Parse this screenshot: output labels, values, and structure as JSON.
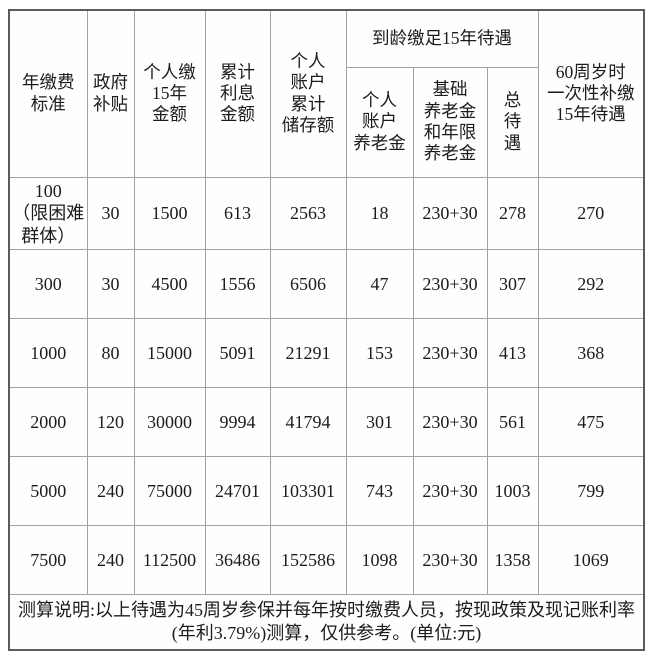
{
  "table": {
    "group_header": "到龄缴足15年待遇",
    "columns": [
      {
        "label": "年缴费\n标准"
      },
      {
        "label": "政府\n补贴"
      },
      {
        "label": "个人缴\n15年\n金额"
      },
      {
        "label": "累计\n利息\n金额"
      },
      {
        "label": "个人\n账户\n累计\n储存额"
      },
      {
        "label": "个人\n账户\n养老金"
      },
      {
        "label": "基础\n养老金\n和年限\n养老金"
      },
      {
        "label": "总\n待\n遇"
      },
      {
        "label": "60周岁时\n一次性补缴\n15年待遇"
      }
    ],
    "rows": [
      [
        "100\n（限困难\n群体）",
        "30",
        "1500",
        "613",
        "2563",
        "18",
        "230+30",
        "278",
        "270"
      ],
      [
        "300",
        "30",
        "4500",
        "1556",
        "6506",
        "47",
        "230+30",
        "307",
        "292"
      ],
      [
        "1000",
        "80",
        "15000",
        "5091",
        "21291",
        "153",
        "230+30",
        "413",
        "368"
      ],
      [
        "2000",
        "120",
        "30000",
        "9994",
        "41794",
        "301",
        "230+30",
        "561",
        "475"
      ],
      [
        "5000",
        "240",
        "75000",
        "24701",
        "103301",
        "743",
        "230+30",
        "1003",
        "799"
      ],
      [
        "7500",
        "240",
        "112500",
        "36486",
        "152586",
        "1098",
        "230+30",
        "1358",
        "1069"
      ]
    ],
    "note": "测算说明:以上待遇为45周岁参保并每年按时缴费人员，按现政策及现记账利率(年利3.79%)测算，仅供参考。(单位:元)"
  },
  "colors": {
    "outer_border": "#5c5c5c",
    "inner_border": "#a2a2a2",
    "text": "#1c1c1c",
    "background": "#ffffff"
  }
}
